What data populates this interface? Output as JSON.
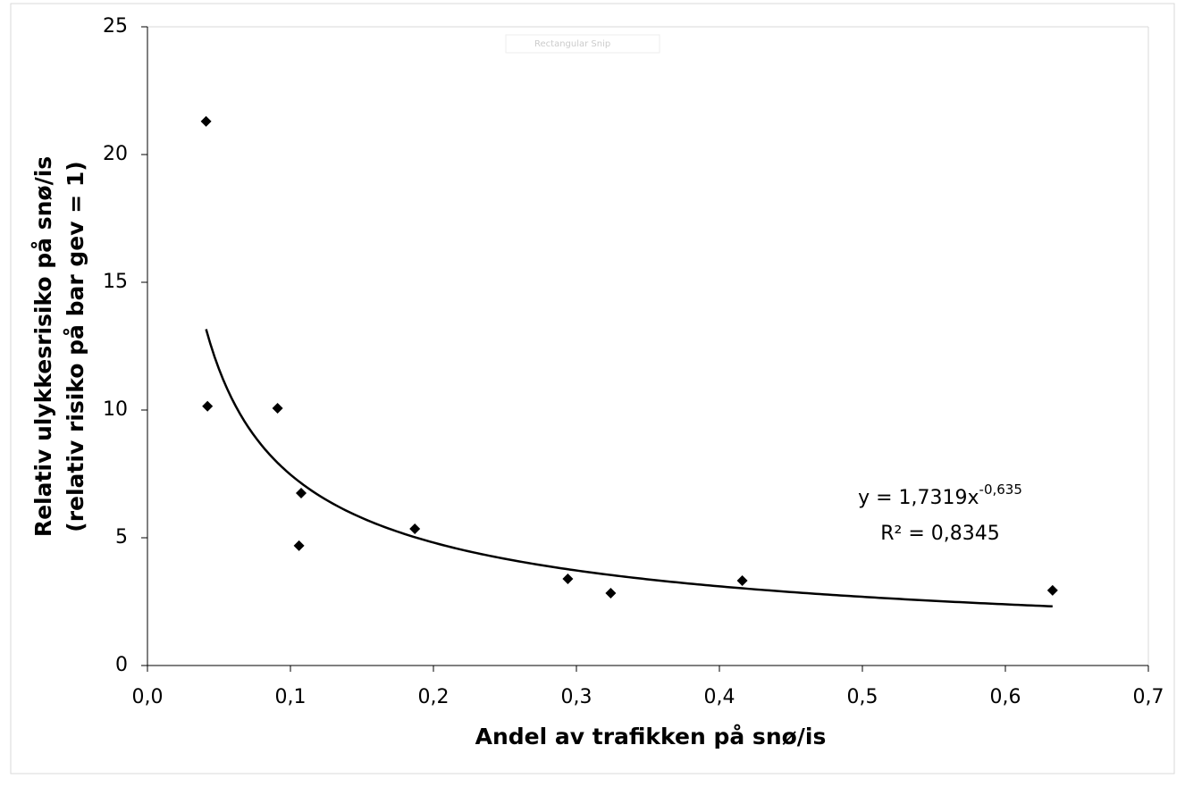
{
  "chart_data": {
    "type": "scatter",
    "x_label": "Andel av trafikken på snø/is",
    "y_label": [
      "Relativ ulykkesrisiko på snø/is",
      "(relativ risiko på bar gev = 1)"
    ],
    "overlay_text": "Rectangular Snip",
    "series": [
      {
        "color": "#000000",
        "x": [
          0.041,
          0.042,
          0.091,
          0.1075,
          0.106,
          0.187,
          0.294,
          0.324,
          0.416,
          0.633
        ],
        "values": [
          21.3,
          10.15,
          10.07,
          6.75,
          4.69,
          5.35,
          3.39,
          2.83,
          3.32,
          2.94
        ]
      }
    ],
    "trendline": {
      "a": 1.7319,
      "b": -0.635,
      "x_start": 0.041,
      "x_end": 0.633,
      "color": "#000000",
      "equation": "y = 1,7319x",
      "exponent": "-0,635",
      "r2_label": "R² = 0,8345"
    },
    "xlim": [
      0,
      0.7
    ],
    "xticks": [
      {
        "value": 0,
        "label": "0,0"
      },
      {
        "value": 0.1,
        "label": "0,1"
      },
      {
        "value": 0.2,
        "label": "0,2"
      },
      {
        "value": 0.3,
        "label": "0,3"
      },
      {
        "value": 0.4,
        "label": "0,4"
      },
      {
        "value": 0.5,
        "label": "0,5"
      },
      {
        "value": 0.6,
        "label": "0,6"
      },
      {
        "value": 0.7,
        "label": "0,7"
      }
    ],
    "ylim": [
      0,
      25
    ],
    "yticks": [
      0,
      5,
      10,
      15,
      20,
      25
    ],
    "grid": false
  }
}
